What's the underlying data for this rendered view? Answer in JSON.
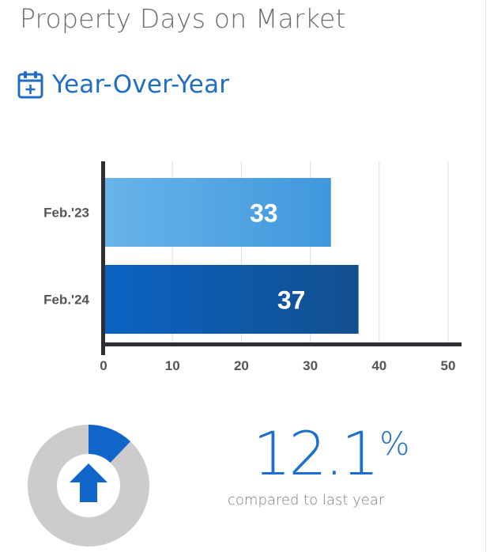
{
  "page": {
    "title": "Property Days on Market"
  },
  "section": {
    "heading": "Year-Over-Year",
    "icon": "calendar-plus-icon"
  },
  "colors": {
    "title": "#6e6e6e",
    "accent": "#1f6ec4",
    "bar_light_start": "#68b4ea",
    "bar_light_end": "#3f98dc",
    "bar_dark_start": "#0a63c2",
    "bar_dark_end": "#124f8f",
    "axis": "#2e2e33",
    "donut_track": "#cccccc"
  },
  "chart_data": {
    "type": "bar",
    "orientation": "horizontal",
    "categories": [
      "Feb.'23",
      "Feb.'24"
    ],
    "values": [
      33,
      37
    ],
    "data_labels": [
      "33",
      "37"
    ],
    "xlim": [
      0,
      50
    ],
    "x_ticks": [
      0,
      10,
      20,
      30,
      40,
      50
    ],
    "grid": "vertical",
    "legend": "none"
  },
  "summary": {
    "percent_value": "12.1",
    "percent_symbol": "%",
    "caption": "compared to last year",
    "direction": "up",
    "direction_icon": "arrow-up-icon",
    "gauge_fraction": 0.121
  }
}
